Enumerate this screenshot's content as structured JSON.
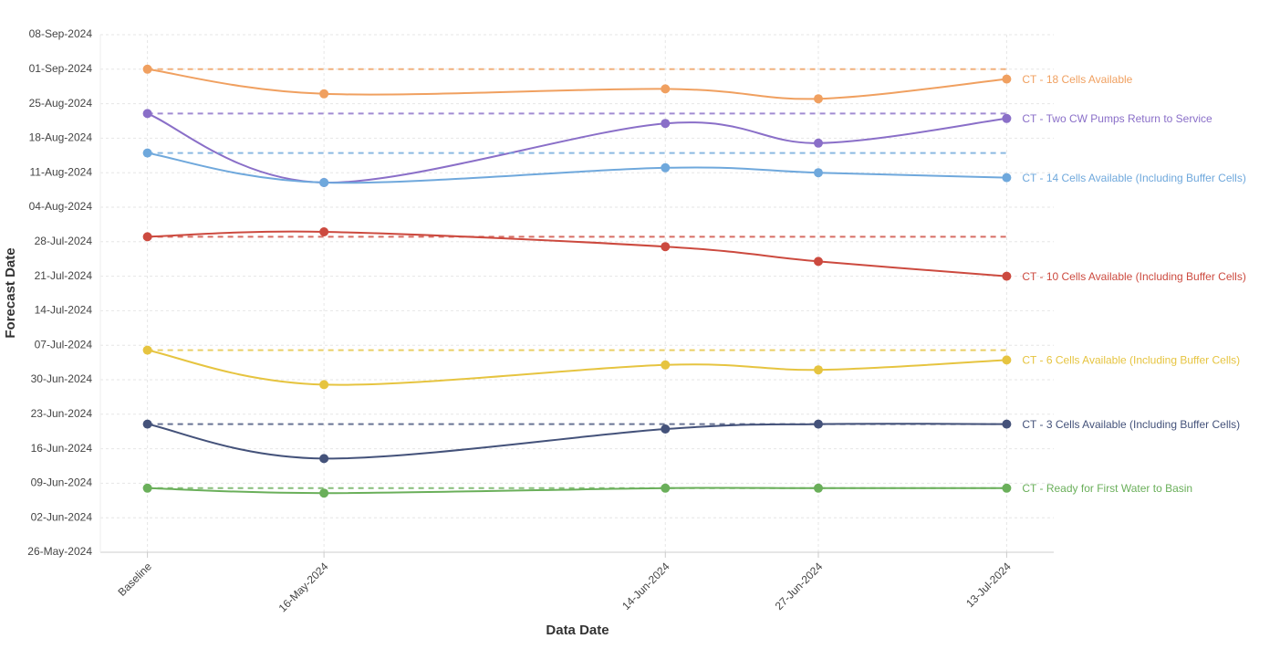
{
  "chart_data": {
    "type": "line",
    "x_label": "Data Date",
    "y_label": "Forecast Date",
    "x": [
      "2024-05-01",
      "2024-05-16",
      "2024-06-14",
      "2024-06-27",
      "2024-07-13"
    ],
    "xlim": [
      "2024-04-27",
      "2024-07-17"
    ],
    "xticks": [
      {
        "value": "2024-05-01",
        "label": "Baseline"
      },
      {
        "value": "2024-05-16",
        "label": "16-May-2024"
      },
      {
        "value": "2024-06-14",
        "label": "14-Jun-2024"
      },
      {
        "value": "2024-06-27",
        "label": "27-Jun-2024"
      },
      {
        "value": "2024-07-13",
        "label": "13-Jul-2024"
      }
    ],
    "ylim": [
      "2024-05-26",
      "2024-09-08"
    ],
    "yticks": [
      {
        "value": "2024-05-26",
        "label": "26-May-2024"
      },
      {
        "value": "2024-06-02",
        "label": "02-Jun-2024"
      },
      {
        "value": "2024-06-09",
        "label": "09-Jun-2024"
      },
      {
        "value": "2024-06-16",
        "label": "16-Jun-2024"
      },
      {
        "value": "2024-06-23",
        "label": "23-Jun-2024"
      },
      {
        "value": "2024-06-30",
        "label": "30-Jun-2024"
      },
      {
        "value": "2024-07-07",
        "label": "07-Jul-2024"
      },
      {
        "value": "2024-07-14",
        "label": "14-Jul-2024"
      },
      {
        "value": "2024-07-21",
        "label": "21-Jul-2024"
      },
      {
        "value": "2024-07-28",
        "label": "28-Jul-2024"
      },
      {
        "value": "2024-08-04",
        "label": "04-Aug-2024"
      },
      {
        "value": "2024-08-11",
        "label": "11-Aug-2024"
      },
      {
        "value": "2024-08-18",
        "label": "18-Aug-2024"
      },
      {
        "value": "2024-08-25",
        "label": "25-Aug-2024"
      },
      {
        "value": "2024-09-01",
        "label": "01-Sep-2024"
      },
      {
        "value": "2024-09-08",
        "label": "08-Sep-2024"
      }
    ],
    "grid": true,
    "baseline_reference_lines": true,
    "smooth": true,
    "series": [
      {
        "name": "CT - 18 Cells Available",
        "color": "#f0a060",
        "values": [
          "2024-09-01",
          "2024-08-27",
          "2024-08-28",
          "2024-08-26",
          "2024-08-30"
        ]
      },
      {
        "name": "CT - Two CW Pumps Return to Service",
        "color": "#8a6fc8",
        "values": [
          "2024-08-23",
          "2024-08-09",
          "2024-08-21",
          "2024-08-17",
          "2024-08-22"
        ]
      },
      {
        "name": "CT - 14 Cells Available (Including Buffer Cells)",
        "color": "#6fa8dc",
        "values": [
          "2024-08-15",
          "2024-08-09",
          "2024-08-12",
          "2024-08-11",
          "2024-08-10"
        ]
      },
      {
        "name": "CT - 10 Cells Available (Including Buffer Cells)",
        "color": "#cc4a3f",
        "values": [
          "2024-07-29",
          "2024-07-30",
          "2024-07-27",
          "2024-07-24",
          "2024-07-21"
        ]
      },
      {
        "name": "CT - 6 Cells Available (Including Buffer Cells)",
        "color": "#e6c440",
        "values": [
          "2024-07-06",
          "2024-06-29",
          "2024-07-03",
          "2024-07-02",
          "2024-07-04"
        ]
      },
      {
        "name": "CT - 3 Cells Available (Including Buffer Cells)",
        "color": "#44527a",
        "values": [
          "2024-06-21",
          "2024-06-14",
          "2024-06-20",
          "2024-06-21",
          "2024-06-21"
        ]
      },
      {
        "name": "CT - Ready for First Water to Basin",
        "color": "#6aaf5a",
        "values": [
          "2024-06-08",
          "2024-06-07",
          "2024-06-08",
          "2024-06-08",
          "2024-06-08"
        ]
      }
    ]
  }
}
